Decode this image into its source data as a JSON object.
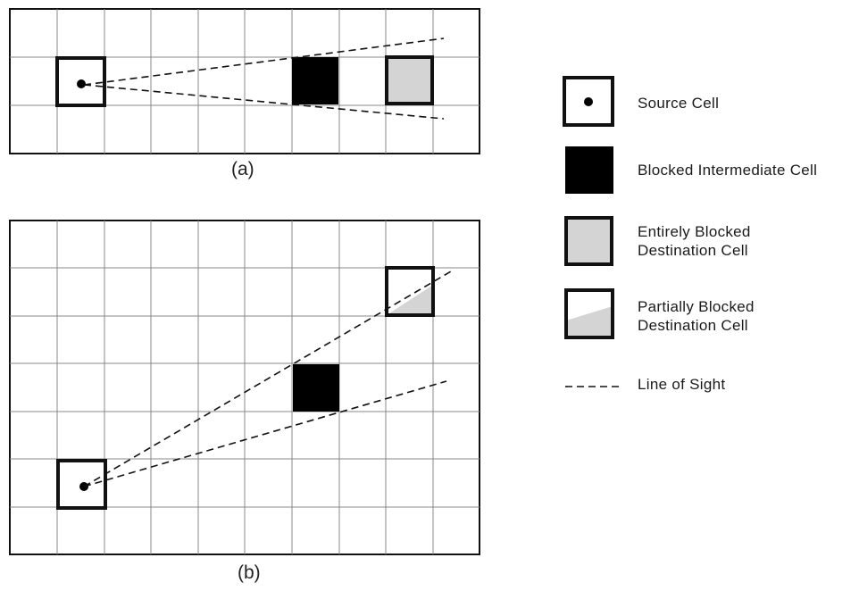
{
  "figure": {
    "caption_a": "(a)",
    "caption_b": "(b)"
  },
  "legend": {
    "source_cell": "Source Cell",
    "blocked_intermediate": "Blocked Intermediate Cell",
    "entirely_blocked_line1": "Entirely Blocked",
    "entirely_blocked_line2": "Destination Cell",
    "partially_blocked_line1": "Partially Blocked",
    "partially_blocked_line2": "Destination Cell",
    "line_of_sight": "Line of Sight"
  },
  "colors": {
    "grid_line": "#888888",
    "frame": "#111111",
    "blocked_fill": "#000000",
    "destination_fill": "#d4d4d4"
  }
}
